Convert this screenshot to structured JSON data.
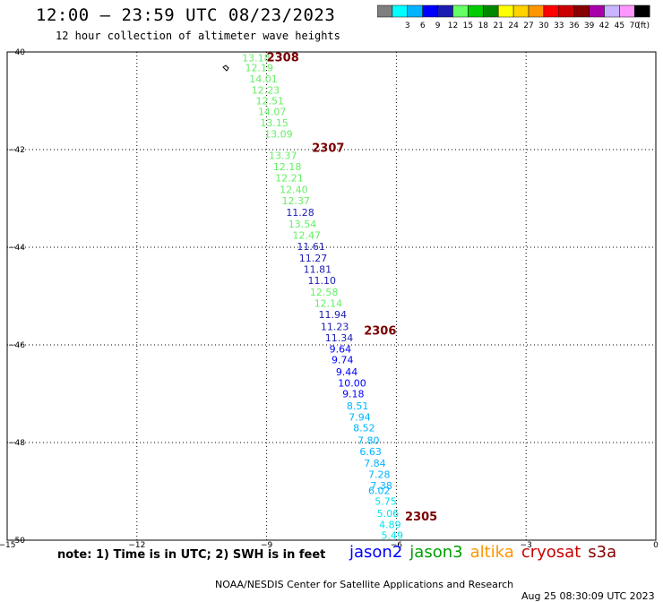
{
  "chart_data": {
    "type": "scatter",
    "title": "12:00 – 23:59 UTC 08/23/2023",
    "subtitle": "12 hour collection of altimeter wave heights",
    "xlim": [
      -15,
      0
    ],
    "ylim": [
      -50,
      -40
    ],
    "x_ticks": [
      {
        "value": -15,
        "label": "−15"
      },
      {
        "value": -12,
        "label": "−12"
      },
      {
        "value": -9,
        "label": "−9"
      },
      {
        "value": -6,
        "label": "−6"
      },
      {
        "value": -3,
        "label": "−3"
      },
      {
        "value": 0,
        "label": "0"
      }
    ],
    "y_ticks": [
      {
        "value": -40,
        "label": "−40"
      },
      {
        "value": -42,
        "label": "−42"
      },
      {
        "value": -44,
        "label": "−44"
      },
      {
        "value": -46,
        "label": "−46"
      },
      {
        "value": -48,
        "label": "−48"
      },
      {
        "value": -50,
        "label": "−50"
      }
    ],
    "grid": true,
    "colorbar": {
      "unit_label": "(ft)",
      "bins": [
        {
          "label": "",
          "color": "#7f7f7f"
        },
        {
          "label": "3",
          "color": "#00ffff"
        },
        {
          "label": "6",
          "color": "#00b4ff"
        },
        {
          "label": "9",
          "color": "#0000ff"
        },
        {
          "label": "12",
          "color": "#1c1cb4"
        },
        {
          "label": "15",
          "color": "#66ff66"
        },
        {
          "label": "18",
          "color": "#00cc00"
        },
        {
          "label": "21",
          "color": "#008800"
        },
        {
          "label": "24",
          "color": "#ffff00"
        },
        {
          "label": "27",
          "color": "#ffd200"
        },
        {
          "label": "30",
          "color": "#ff9600"
        },
        {
          "label": "33",
          "color": "#ff0000"
        },
        {
          "label": "36",
          "color": "#cc0000"
        },
        {
          "label": "39",
          "color": "#880000"
        },
        {
          "label": "42",
          "color": "#aa00aa"
        },
        {
          "label": "45",
          "color": "#c8b4ff"
        },
        {
          "label": "70",
          "color": "#ff96ff"
        },
        {
          "label": "",
          "color": "#000000"
        }
      ]
    },
    "time_labels": [
      {
        "label": "2308",
        "x": -9.0,
        "y": -40.1
      },
      {
        "label": "2307",
        "x": -7.95,
        "y": -41.95
      },
      {
        "label": "2306",
        "x": -6.75,
        "y": -45.7
      },
      {
        "label": "2305",
        "x": -5.8,
        "y": -49.5
      }
    ],
    "points": [
      {
        "x": -9.57,
        "y": -40.12,
        "value": "13.18",
        "color": "#66ee66"
      },
      {
        "x": -9.5,
        "y": -40.32,
        "value": "12.19",
        "color": "#66ee66"
      },
      {
        "x": -9.4,
        "y": -40.55,
        "value": "14.01",
        "color": "#66ee66"
      },
      {
        "x": -9.35,
        "y": -40.78,
        "value": "12.23",
        "color": "#66ee66"
      },
      {
        "x": -9.25,
        "y": -41.0,
        "value": "12.51",
        "color": "#66ee66"
      },
      {
        "x": -9.2,
        "y": -41.22,
        "value": "14.07",
        "color": "#66ee66"
      },
      {
        "x": -9.15,
        "y": -41.45,
        "value": "13.15",
        "color": "#66ee66"
      },
      {
        "x": -9.05,
        "y": -41.68,
        "value": "13.09",
        "color": "#66ee66"
      },
      {
        "x": -8.95,
        "y": -42.12,
        "value": "13.37",
        "color": "#66ee66"
      },
      {
        "x": -8.85,
        "y": -42.35,
        "value": "12.18",
        "color": "#66ee66"
      },
      {
        "x": -8.8,
        "y": -42.58,
        "value": "12.21",
        "color": "#66ee66"
      },
      {
        "x": -8.7,
        "y": -42.82,
        "value": "12.40",
        "color": "#66ee66"
      },
      {
        "x": -8.65,
        "y": -43.05,
        "value": "12.37",
        "color": "#66ee66"
      },
      {
        "x": -8.55,
        "y": -43.28,
        "value": "11.28",
        "color": "#1c1cb4"
      },
      {
        "x": -8.5,
        "y": -43.52,
        "value": "13.54",
        "color": "#66ee66"
      },
      {
        "x": -8.4,
        "y": -43.75,
        "value": "12.47",
        "color": "#66ee66"
      },
      {
        "x": -8.3,
        "y": -43.98,
        "value": "11.61",
        "color": "#1c1cb4"
      },
      {
        "x": -8.25,
        "y": -44.22,
        "value": "11.27",
        "color": "#1c1cb4"
      },
      {
        "x": -8.15,
        "y": -44.45,
        "value": "11.81",
        "color": "#1c1cb4"
      },
      {
        "x": -8.05,
        "y": -44.68,
        "value": "11.10",
        "color": "#1c1cb4"
      },
      {
        "x": -8.0,
        "y": -44.92,
        "value": "12.58",
        "color": "#66ee66"
      },
      {
        "x": -7.9,
        "y": -45.15,
        "value": "12.14",
        "color": "#66ee66"
      },
      {
        "x": -7.8,
        "y": -45.38,
        "value": "11.94",
        "color": "#1c1cb4"
      },
      {
        "x": -7.75,
        "y": -45.62,
        "value": "11.23",
        "color": "#1c1cb4"
      },
      {
        "x": -7.65,
        "y": -45.85,
        "value": "11.34",
        "color": "#1c1cb4"
      },
      {
        "x": -7.55,
        "y": -46.08,
        "value": "9.64",
        "color": "#0000ff"
      },
      {
        "x": -7.5,
        "y": -46.3,
        "value": "9.74",
        "color": "#0000ff"
      },
      {
        "x": -7.4,
        "y": -46.55,
        "value": "9.44",
        "color": "#0000ff"
      },
      {
        "x": -7.35,
        "y": -46.78,
        "value": "10.00",
        "color": "#0000ff"
      },
      {
        "x": -7.25,
        "y": -47.0,
        "value": "9.18",
        "color": "#0000ff"
      },
      {
        "x": -7.15,
        "y": -47.25,
        "value": "8.51",
        "color": "#00b4ff"
      },
      {
        "x": -7.1,
        "y": -47.48,
        "value": "7.94",
        "color": "#00b4ff"
      },
      {
        "x": -7.0,
        "y": -47.7,
        "value": "8.52",
        "color": "#00b4ff"
      },
      {
        "x": -6.9,
        "y": -47.95,
        "value": "7.80",
        "color": "#00b4ff"
      },
      {
        "x": -6.85,
        "y": -48.18,
        "value": "6.63",
        "color": "#00b4ff"
      },
      {
        "x": -6.75,
        "y": -48.42,
        "value": "7.84",
        "color": "#00b4ff"
      },
      {
        "x": -6.65,
        "y": -48.65,
        "value": "7.28",
        "color": "#00b4ff"
      },
      {
        "x": -6.6,
        "y": -48.88,
        "value": "7.38",
        "color": "#00b4ff"
      },
      {
        "x": -6.65,
        "y": -48.98,
        "value": "6.02",
        "color": "#00b4ff"
      },
      {
        "x": -6.5,
        "y": -49.2,
        "value": "5.75",
        "color": "#00e5ee"
      },
      {
        "x": -6.45,
        "y": -49.45,
        "value": "5.06",
        "color": "#00e5ee"
      },
      {
        "x": -6.4,
        "y": -49.68,
        "value": "4.89",
        "color": "#00e5ee"
      },
      {
        "x": -6.35,
        "y": -49.9,
        "value": "5.49",
        "color": "#00e5ee"
      }
    ]
  },
  "note": "note: 1) Time is in UTC; 2) SWH is in feet",
  "satellites": [
    {
      "name": "jason2",
      "color": "#0000ff"
    },
    {
      "name": "jason3",
      "color": "#00a000"
    },
    {
      "name": "altika",
      "color": "#ff9600"
    },
    {
      "name": "cryosat",
      "color": "#cc0000"
    },
    {
      "name": "s3a",
      "color": "#880000"
    }
  ],
  "footer": {
    "left": "NOAA/NESDIS Center for Satellite Applications and Research",
    "right": "Aug 25 08:30:09 UTC 2023"
  },
  "colors": {
    "time_label": "#7a0000",
    "grid": "#000000"
  }
}
